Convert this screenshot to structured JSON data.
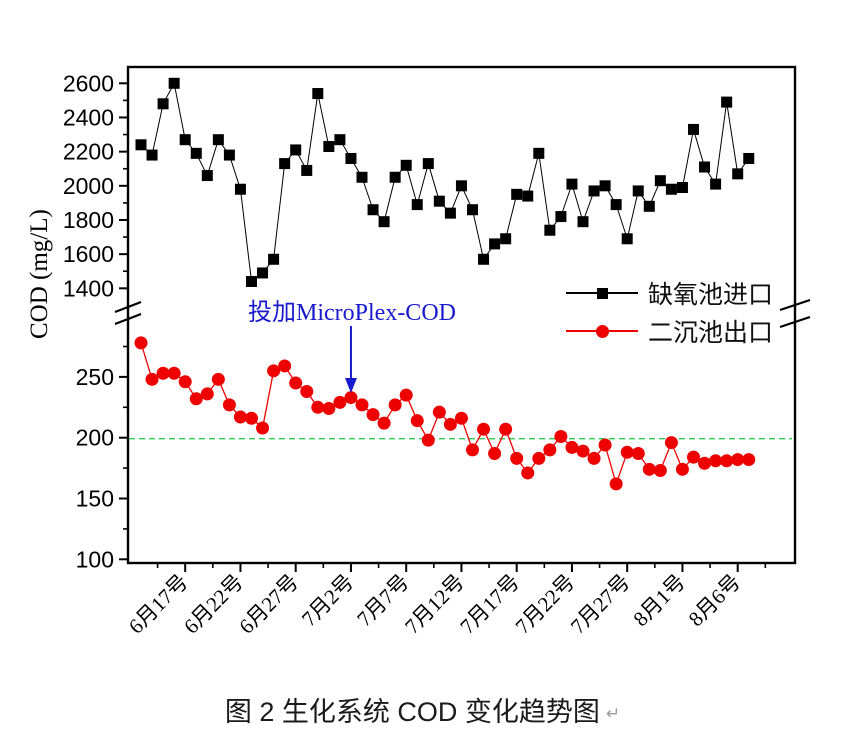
{
  "caption": {
    "text": "图 2 生化系统 COD 变化趋势图",
    "pilcrow": "↵"
  },
  "chart_data": {
    "type": "line",
    "title": "图 2 生化系统 COD 变化趋势图",
    "xlabel": "",
    "ylabel": "COD (mg/L)",
    "broken_y_axis": true,
    "upper_axis": {
      "ticks": [
        1400,
        1600,
        1800,
        2000,
        2200,
        2400,
        2600
      ],
      "minor_step": 100,
      "range_note": "upper segment of broken axis, mg/L"
    },
    "lower_axis": {
      "ticks": [
        100,
        150,
        200,
        250
      ],
      "minor_step": 25,
      "range_note": "lower segment of broken axis, mg/L"
    },
    "x_tick_labels": [
      "6月17号",
      "6月22号",
      "6月27号",
      "7月2号",
      "7月7号",
      "7月12号",
      "7月17号",
      "7月22号",
      "7月27号",
      "8月1号",
      "8月6号"
    ],
    "x_tick_day_indices": [
      4,
      9,
      14,
      19,
      24,
      29,
      34,
      39,
      44,
      49,
      54
    ],
    "x_start_date": "6月13号",
    "x_sampling": "daily",
    "grid": false,
    "legend_position": "inside-right-middle",
    "reference_line": {
      "value": 200,
      "color": "#2ecc54",
      "style": "dashed"
    },
    "annotation": {
      "text": "投加MicroPlex-COD",
      "color": "#1a1acd",
      "arrow_day_index": 19,
      "arrow_points_to": "7月2号"
    },
    "series": [
      {
        "name": "缺氧池进口",
        "axis": "upper",
        "color": "#000000",
        "marker": "square",
        "values": [
          2240,
          2180,
          2480,
          2600,
          2270,
          2190,
          2060,
          2270,
          2180,
          1980,
          1440,
          1490,
          1570,
          2130,
          2210,
          2090,
          2540,
          2230,
          2270,
          2160,
          2050,
          1860,
          1790,
          2050,
          2120,
          1890,
          2130,
          1910,
          1840,
          2000,
          1860,
          1570,
          1660,
          1690,
          1950,
          1940,
          2190,
          1740,
          1820,
          2010,
          1790,
          1970,
          2000,
          1890,
          1690,
          1970,
          1880,
          2030,
          1980,
          1990,
          2330,
          2110,
          2010,
          2490,
          2070,
          2160
        ]
      },
      {
        "name": "二沉池出口",
        "axis": "lower",
        "color": "#ee0000",
        "marker": "circle",
        "values": [
          278,
          248,
          253,
          253,
          246,
          232,
          236,
          248,
          227,
          217,
          216,
          208,
          255,
          259,
          245,
          238,
          225,
          224,
          229,
          233,
          227,
          219,
          212,
          227,
          235,
          214,
          198,
          221,
          211,
          216,
          190,
          207,
          187,
          207,
          183,
          171,
          183,
          190,
          201,
          192,
          189,
          183,
          194,
          162,
          188,
          187,
          174,
          173,
          196,
          174,
          184,
          179,
          181,
          181,
          182,
          182
        ]
      }
    ]
  }
}
